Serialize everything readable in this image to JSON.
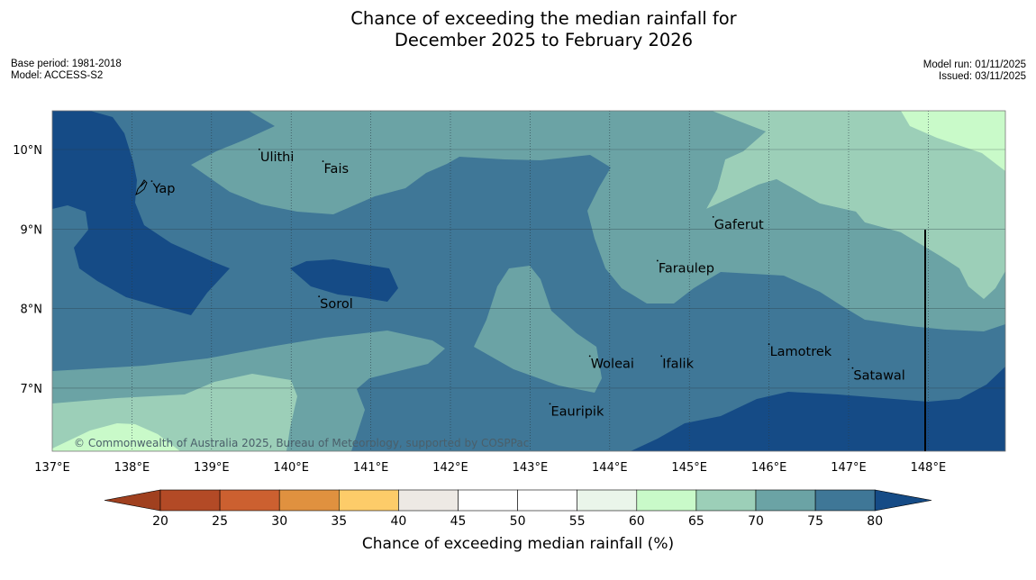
{
  "title": {
    "line1": "Chance of exceeding the median rainfall for",
    "line2": "December 2025 to February 2026"
  },
  "meta": {
    "base_period": "Base period: 1981-2018",
    "model": "Model: ACCESS-S2",
    "model_run": "Model run: 01/11/2025",
    "issued": "Issued: 03/11/2025"
  },
  "map": {
    "lon_labels": [
      "137°E",
      "138°E",
      "139°E",
      "140°E",
      "141°E",
      "142°E",
      "143°E",
      "144°E",
      "145°E",
      "146°E",
      "147°E",
      "148°E"
    ],
    "lat_labels": [
      "10°N",
      "9°N",
      "8°N",
      "7°N"
    ],
    "places": [
      {
        "name": "Yap",
        "lon": 138.25,
        "lat": 9.5
      },
      {
        "name": "Ulithi",
        "lon": 139.6,
        "lat": 9.9
      },
      {
        "name": "Fais",
        "lon": 140.4,
        "lat": 9.75
      },
      {
        "name": "Gaferut",
        "lon": 145.3,
        "lat": 9.05
      },
      {
        "name": "Faraulep",
        "lon": 144.6,
        "lat": 8.5
      },
      {
        "name": "Sorol",
        "lon": 140.35,
        "lat": 8.05
      },
      {
        "name": "Woleai",
        "lon": 143.75,
        "lat": 7.3
      },
      {
        "name": "Ifalik",
        "lon": 144.65,
        "lat": 7.3
      },
      {
        "name": "Lamotrek",
        "lon": 146.0,
        "lat": 7.45
      },
      {
        "name": "Satawal",
        "lon": 147.05,
        "lat": 7.15
      },
      {
        "name": "Eauripik",
        "lon": 143.25,
        "lat": 6.7
      }
    ],
    "copyright": "© Commonwealth of Australia 2025, Bureau of Meteorology, supported by COSPPac"
  },
  "colorbar": {
    "ticks": [
      "20",
      "25",
      "30",
      "35",
      "40",
      "45",
      "50",
      "55",
      "60",
      "65",
      "70",
      "75",
      "80"
    ],
    "colors": [
      "#b34a26",
      "#cc6030",
      "#e0913f",
      "#fdcc69",
      "#ede9e4",
      "#ffffff",
      "#ffffff",
      "#eaf5ea",
      "#c9fac9",
      "#9ccfb8",
      "#6ba3a5",
      "#3f7797"
    ],
    "under_color": "#a0401f",
    "over_color": "#154b86",
    "label": "Chance of exceeding median rainfall (%)"
  },
  "colors": {
    "dark_blue": "#154b86",
    "blue": "#3f7797",
    "teal": "#6ba3a5",
    "light_green": "#9ccfb8",
    "pale_green": "#c9fac9"
  }
}
